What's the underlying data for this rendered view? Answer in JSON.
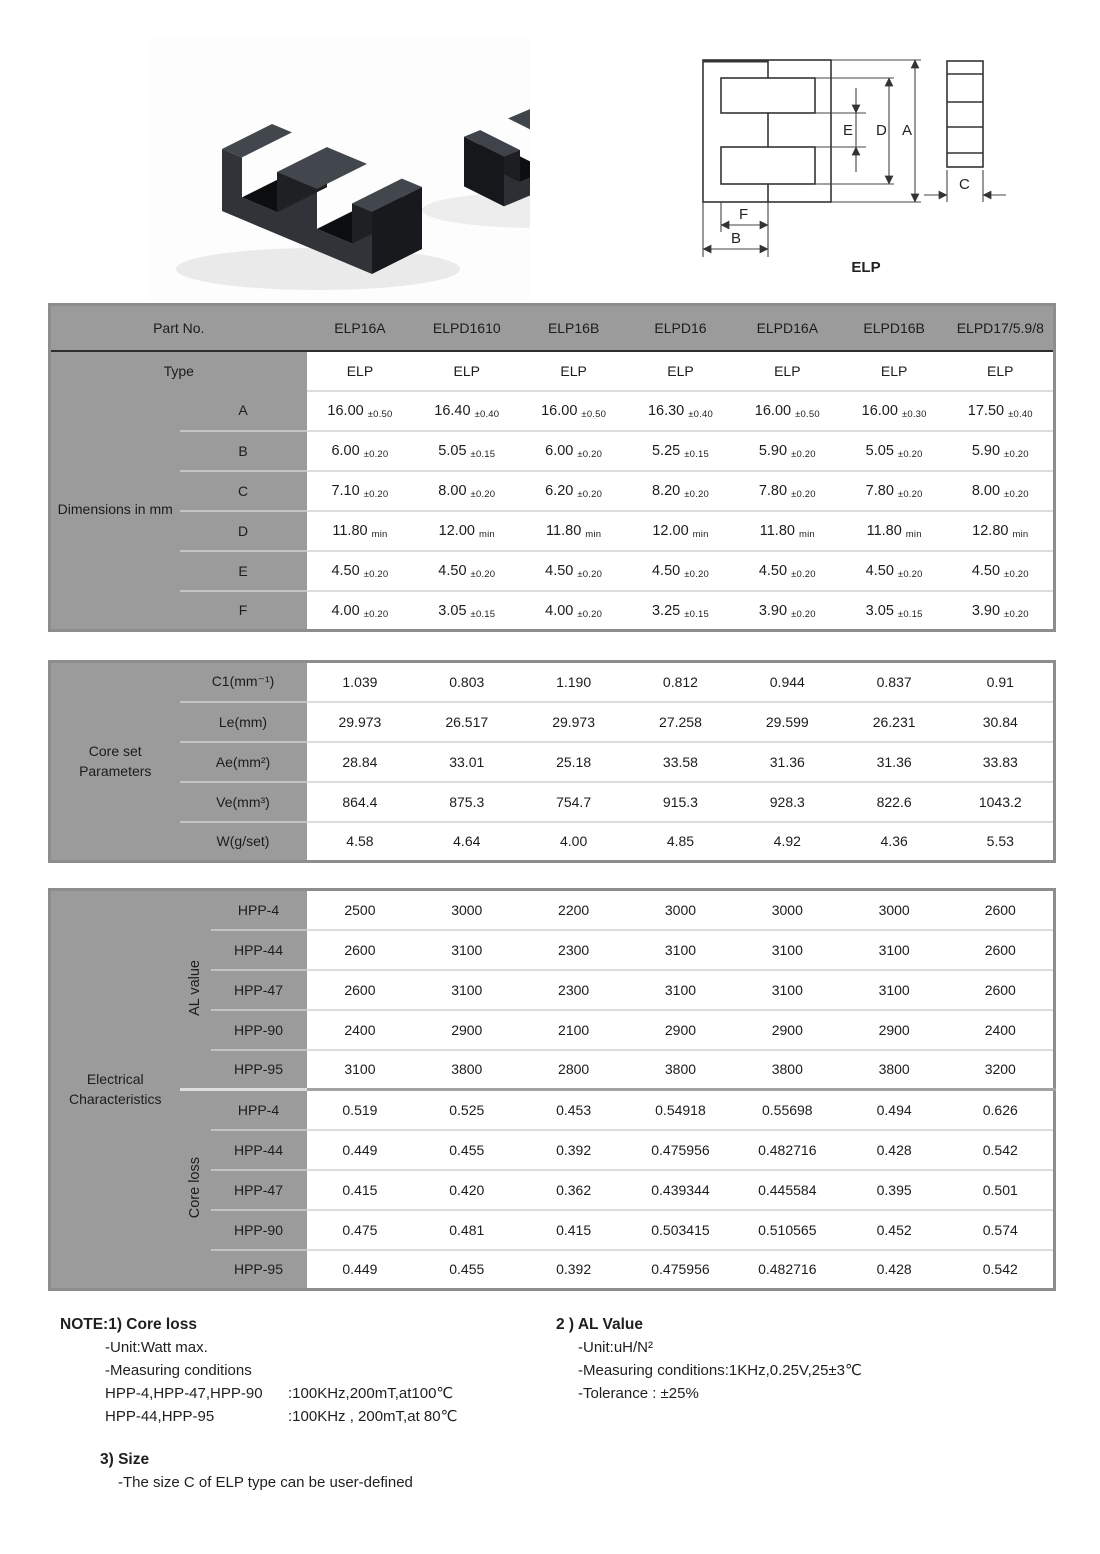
{
  "drawing": {
    "caption": "ELP",
    "labels": {
      "A": "A",
      "B": "B",
      "C": "C",
      "D": "D",
      "E": "E",
      "F": "F"
    }
  },
  "tables": {
    "dimensions": {
      "part_no_label": "Part No.",
      "type_label": "Type",
      "group_label": "Dimensions in mm",
      "columns": [
        "ELP16A",
        "ELPD1610",
        "ELP16B",
        "ELPD16",
        "ELPD16A",
        "ELPD16B",
        "ELPD17/5.9/8"
      ],
      "types": [
        "ELP",
        "ELP",
        "ELP",
        "ELP",
        "ELP",
        "ELP",
        "ELP"
      ],
      "rows": [
        {
          "label": "A",
          "cells": [
            {
              "v": "16.00",
              "t": "±0.50"
            },
            {
              "v": "16.40",
              "t": "±0.40"
            },
            {
              "v": "16.00",
              "t": "±0.50"
            },
            {
              "v": "16.30",
              "t": "±0.40"
            },
            {
              "v": "16.00",
              "t": "±0.50"
            },
            {
              "v": "16.00",
              "t": "±0.30"
            },
            {
              "v": "17.50",
              "t": "±0.40"
            }
          ]
        },
        {
          "label": "B",
          "cells": [
            {
              "v": "6.00",
              "t": "±0.20"
            },
            {
              "v": "5.05",
              "t": "±0.15"
            },
            {
              "v": "6.00",
              "t": "±0.20"
            },
            {
              "v": "5.25",
              "t": "±0.15"
            },
            {
              "v": "5.90",
              "t": "±0.20"
            },
            {
              "v": "5.05",
              "t": "±0.20"
            },
            {
              "v": "5.90",
              "t": "±0.20"
            }
          ]
        },
        {
          "label": "C",
          "cells": [
            {
              "v": "7.10",
              "t": "±0.20"
            },
            {
              "v": "8.00",
              "t": "±0.20"
            },
            {
              "v": "6.20",
              "t": "±0.20"
            },
            {
              "v": "8.20",
              "t": "±0.20"
            },
            {
              "v": "7.80",
              "t": "±0.20"
            },
            {
              "v": "7.80",
              "t": "±0.20"
            },
            {
              "v": "8.00",
              "t": "±0.20"
            }
          ]
        },
        {
          "label": "D",
          "cells": [
            {
              "v": "11.80",
              "t": "min"
            },
            {
              "v": "12.00",
              "t": "min"
            },
            {
              "v": "11.80",
              "t": "min"
            },
            {
              "v": "12.00",
              "t": "min"
            },
            {
              "v": "11.80",
              "t": "min"
            },
            {
              "v": "11.80",
              "t": "min"
            },
            {
              "v": "12.80",
              "t": "min"
            }
          ]
        },
        {
          "label": "E",
          "cells": [
            {
              "v": "4.50",
              "t": "±0.20"
            },
            {
              "v": "4.50",
              "t": "±0.20"
            },
            {
              "v": "4.50",
              "t": "±0.20"
            },
            {
              "v": "4.50",
              "t": "±0.20"
            },
            {
              "v": "4.50",
              "t": "±0.20"
            },
            {
              "v": "4.50",
              "t": "±0.20"
            },
            {
              "v": "4.50",
              "t": "±0.20"
            }
          ]
        },
        {
          "label": "F",
          "cells": [
            {
              "v": "4.00",
              "t": "±0.20"
            },
            {
              "v": "3.05",
              "t": "±0.15"
            },
            {
              "v": "4.00",
              "t": "±0.20"
            },
            {
              "v": "3.25",
              "t": "±0.15"
            },
            {
              "v": "3.90",
              "t": "±0.20"
            },
            {
              "v": "3.05",
              "t": "±0.15"
            },
            {
              "v": "3.90",
              "t": "±0.20"
            }
          ]
        }
      ]
    },
    "core_set": {
      "group_label": "Core set Parameters",
      "rows": [
        {
          "label": "C1(mm⁻¹)",
          "cells": [
            "1.039",
            "0.803",
            "1.190",
            "0.812",
            "0.944",
            "0.837",
            "0.91"
          ]
        },
        {
          "label": "Le(mm)",
          "cells": [
            "29.973",
            "26.517",
            "29.973",
            "27.258",
            "29.599",
            "26.231",
            "30.84"
          ]
        },
        {
          "label": "Ae(mm²)",
          "cells": [
            "28.84",
            "33.01",
            "25.18",
            "33.58",
            "31.36",
            "31.36",
            "33.83"
          ]
        },
        {
          "label": "Ve(mm³)",
          "cells": [
            "864.4",
            "875.3",
            "754.7",
            "915.3",
            "928.3",
            "822.6",
            "1043.2"
          ]
        },
        {
          "label": "W(g/set)",
          "cells": [
            "4.58",
            "4.64",
            "4.00",
            "4.85",
            "4.92",
            "4.36",
            "5.53"
          ]
        }
      ]
    },
    "electrical": {
      "group_label": "Electrical Characteristics",
      "al_label": "AL value",
      "core_loss_label": "Core loss",
      "al_rows": [
        {
          "label": "HPP-4",
          "cells": [
            "2500",
            "3000",
            "2200",
            "3000",
            "3000",
            "3000",
            "2600"
          ]
        },
        {
          "label": "HPP-44",
          "cells": [
            "2600",
            "3100",
            "2300",
            "3100",
            "3100",
            "3100",
            "2600"
          ]
        },
        {
          "label": "HPP-47",
          "cells": [
            "2600",
            "3100",
            "2300",
            "3100",
            "3100",
            "3100",
            "2600"
          ]
        },
        {
          "label": "HPP-90",
          "cells": [
            "2400",
            "2900",
            "2100",
            "2900",
            "2900",
            "2900",
            "2400"
          ]
        },
        {
          "label": "HPP-95",
          "cells": [
            "3100",
            "3800",
            "2800",
            "3800",
            "3800",
            "3800",
            "3200"
          ]
        }
      ],
      "loss_rows": [
        {
          "label": "HPP-4",
          "cells": [
            "0.519",
            "0.525",
            "0.453",
            "0.54918",
            "0.55698",
            "0.494",
            "0.626"
          ]
        },
        {
          "label": "HPP-44",
          "cells": [
            "0.449",
            "0.455",
            "0.392",
            "0.475956",
            "0.482716",
            "0.428",
            "0.542"
          ]
        },
        {
          "label": "HPP-47",
          "cells": [
            "0.415",
            "0.420",
            "0.362",
            "0.439344",
            "0.445584",
            "0.395",
            "0.501"
          ]
        },
        {
          "label": "HPP-90",
          "cells": [
            "0.475",
            "0.481",
            "0.415",
            "0.503415",
            "0.510565",
            "0.452",
            "0.574"
          ]
        },
        {
          "label": "HPP-95",
          "cells": [
            "0.449",
            "0.455",
            "0.392",
            "0.475956",
            "0.482716",
            "0.428",
            "0.542"
          ]
        }
      ]
    }
  },
  "notes": {
    "note1_title": "NOTE:1) Core loss",
    "note1_lines": [
      "-Unit:Watt max.",
      "-Measuring conditions"
    ],
    "cond1": {
      "left": "HPP-4,HPP-47,HPP-90",
      "right": ":100KHz,200mT,at100℃"
    },
    "cond2": {
      "left": "HPP-44,HPP-95",
      "right": ":100KHz , 200mT,at 80℃"
    },
    "note2_title": "2 ) AL Value",
    "note2_lines": [
      "-Unit:uH/N²",
      "-Measuring conditions:1KHz,0.25V,25±3℃",
      "-Tolerance : ±25%"
    ],
    "note3_title": "3) Size",
    "note3_line": "-The size C of ELP type can be user-defined"
  }
}
